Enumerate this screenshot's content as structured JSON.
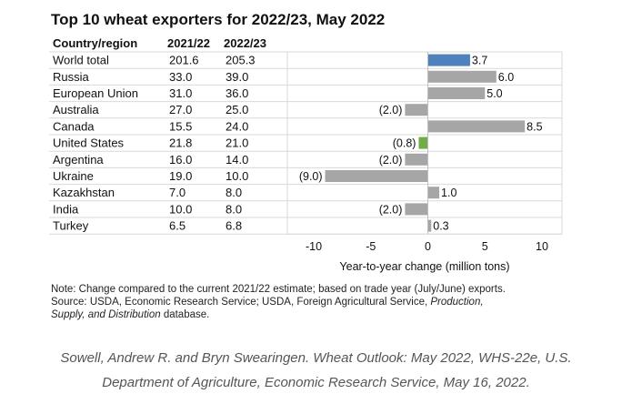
{
  "chart_data": {
    "type": "table",
    "title": "Top 10 wheat exporters for 2022/23, May 2022",
    "columns": [
      "Country/region",
      "2021/22",
      "2022/23"
    ],
    "rows": [
      {
        "name": "World total",
        "y2122": "201.6",
        "y2223": "205.3",
        "change": 3.7,
        "label": "3.7"
      },
      {
        "name": "Russia",
        "y2122": "33.0",
        "y2223": "39.0",
        "change": 6.0,
        "label": "6.0"
      },
      {
        "name": "European Union",
        "y2122": "31.0",
        "y2223": "36.0",
        "change": 5.0,
        "label": "5.0"
      },
      {
        "name": "Australia",
        "y2122": "27.0",
        "y2223": "25.0",
        "change": -2.0,
        "label": "(2.0)"
      },
      {
        "name": "Canada",
        "y2122": "15.5",
        "y2223": "24.0",
        "change": 8.5,
        "label": "8.5"
      },
      {
        "name": "United States",
        "y2122": "21.8",
        "y2223": "21.0",
        "change": -0.8,
        "label": "(0.8)"
      },
      {
        "name": "Argentina",
        "y2122": "16.0",
        "y2223": "14.0",
        "change": -2.0,
        "label": "(2.0)"
      },
      {
        "name": "Ukraine",
        "y2122": "19.0",
        "y2223": "10.0",
        "change": -9.0,
        "label": "(9.0)"
      },
      {
        "name": "Kazakhstan",
        "y2122": "7.0",
        "y2223": "8.0",
        "change": 1.0,
        "label": "1.0"
      },
      {
        "name": "India",
        "y2122": "10.0",
        "y2223": "8.0",
        "change": -2.0,
        "label": "(2.0)"
      },
      {
        "name": "Turkey",
        "y2122": "6.5",
        "y2223": "6.8",
        "change": 0.3,
        "label": "0.3"
      }
    ],
    "xlabel": "Year-to-year change (million tons)",
    "xlim": [
      -10,
      10
    ],
    "xticks": [
      -10,
      -5,
      0,
      5,
      10
    ],
    "colors": {
      "world": "#4f81bd",
      "us": "#70ad47",
      "default": "#a6a6a6"
    }
  },
  "note": {
    "line1": "Note: Change compared to the current 2021/22 estimate; based on trade year (July/June) exports.",
    "line2a": "Source: USDA, Economic Research Service; USDA, Foreign Agricultural Service,",
    "line2b": "Production,",
    "line3a": "Supply, and Distribution",
    "line3b": "database."
  },
  "citation": {
    "line1": "Sowell, Andrew R. and Bryn Swearingen. Wheat Outlook: May 2022, WHS-22e, U.S.",
    "line2": "Department of Agriculture, Economic Research Service, May 16, 2022."
  }
}
